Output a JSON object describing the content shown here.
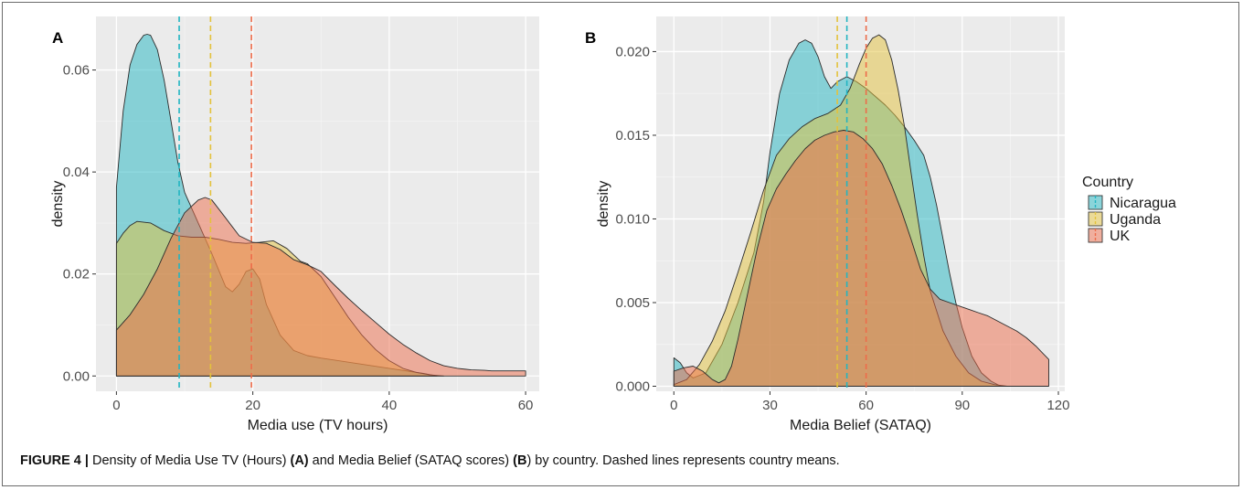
{
  "caption": {
    "label": "FIGURE 4 |",
    "t1": " Density of Media Use TV (Hours) ",
    "a": "(A)",
    "t2": " and Media Belief (SATAQ scores) ",
    "b": "(B",
    "t3": ") by country. Dashed lines represents country means."
  },
  "legend": {
    "title": "Country",
    "items": [
      {
        "name": "Nicaragua",
        "color": "#22b5c2"
      },
      {
        "name": "Uganda",
        "color": "#e3c23c"
      },
      {
        "name": "UK",
        "color": "#ee6c4a"
      }
    ]
  },
  "chart_data": [
    {
      "type": "area",
      "panel": "A",
      "xlabel": "Media use (TV hours)",
      "ylabel": "density",
      "xlim": [
        -3,
        62
      ],
      "ylim": [
        -0.003,
        0.0705
      ],
      "xticks": [
        0,
        20,
        40,
        60
      ],
      "yticks": [
        0.0,
        0.02,
        0.04,
        0.06
      ],
      "ytick_labels": [
        "0.00",
        "0.02",
        "0.04",
        "0.06"
      ],
      "grid": true,
      "series": [
        {
          "name": "Nicaragua",
          "color": "#22b5c2",
          "mean": 9.2,
          "x": [
            0,
            1,
            2,
            3,
            4,
            4.5,
            5,
            6,
            7,
            8,
            9,
            10,
            12,
            14,
            16,
            17,
            18,
            19,
            20,
            21,
            22,
            24,
            26,
            28,
            30,
            35,
            40,
            45,
            47
          ],
          "y": [
            0.037,
            0.052,
            0.061,
            0.065,
            0.0668,
            0.067,
            0.0668,
            0.064,
            0.058,
            0.05,
            0.042,
            0.036,
            0.03,
            0.024,
            0.0175,
            0.0165,
            0.018,
            0.0205,
            0.021,
            0.019,
            0.014,
            0.008,
            0.005,
            0.004,
            0.0035,
            0.0025,
            0.0015,
            0.0005,
            0
          ]
        },
        {
          "name": "Uganda",
          "color": "#e3c23c",
          "mean": 13.8,
          "x": [
            0,
            1,
            2,
            3,
            5,
            7,
            9,
            11,
            13,
            15,
            17,
            19,
            21,
            23,
            25,
            27,
            28,
            30,
            32,
            34,
            36,
            38,
            40,
            42,
            44,
            46,
            48
          ],
          "y": [
            0.026,
            0.028,
            0.0295,
            0.0303,
            0.03,
            0.0285,
            0.0275,
            0.0272,
            0.0272,
            0.0268,
            0.0262,
            0.026,
            0.0262,
            0.0265,
            0.025,
            0.0225,
            0.022,
            0.0195,
            0.0155,
            0.0115,
            0.008,
            0.0052,
            0.003,
            0.0015,
            0.0007,
            0.0002,
            0
          ]
        },
        {
          "name": "UK",
          "color": "#ee6c4a",
          "mean": 19.8,
          "x": [
            0,
            2,
            4,
            6,
            8,
            10,
            12,
            13,
            14,
            16,
            18,
            20,
            22,
            24,
            26,
            28,
            30,
            32,
            34,
            36,
            38,
            40,
            42,
            44,
            46,
            48,
            50,
            52,
            54,
            55,
            56,
            58,
            60
          ],
          "y": [
            0.009,
            0.012,
            0.016,
            0.021,
            0.027,
            0.032,
            0.0345,
            0.035,
            0.0345,
            0.031,
            0.0275,
            0.0262,
            0.026,
            0.0248,
            0.0228,
            0.0218,
            0.0205,
            0.0178,
            0.0152,
            0.0128,
            0.0105,
            0.0082,
            0.0062,
            0.0045,
            0.003,
            0.002,
            0.0015,
            0.0012,
            0.0011,
            0.001,
            0.001,
            0.001,
            0.001
          ]
        }
      ]
    },
    {
      "type": "area",
      "panel": "B",
      "xlabel": "Media Belief (SATAQ)",
      "ylabel": "density",
      "xlim": [
        -5.5,
        122
      ],
      "ylim": [
        -0.0003,
        0.0221
      ],
      "xticks": [
        0,
        30,
        60,
        90,
        120
      ],
      "yticks": [
        0.0,
        0.005,
        0.01,
        0.015,
        0.02
      ],
      "ytick_labels": [
        "0.000",
        "0.005",
        "0.010",
        "0.015",
        "0.020"
      ],
      "grid": true,
      "series": [
        {
          "name": "Nicaragua",
          "color": "#22b5c2",
          "mean": 54,
          "x": [
            0,
            2,
            4,
            6,
            10,
            15,
            20,
            25,
            28,
            30,
            33,
            36,
            39,
            41,
            43,
            45,
            47,
            49,
            51,
            54,
            57,
            60,
            63,
            66,
            69,
            72,
            75,
            78,
            80,
            82,
            84,
            86,
            88,
            90,
            93,
            96,
            99,
            102
          ],
          "y": [
            0.0017,
            0.0014,
            0.0008,
            0.0005,
            0.0008,
            0.0025,
            0.005,
            0.008,
            0.011,
            0.014,
            0.0175,
            0.0195,
            0.0205,
            0.0207,
            0.0205,
            0.0197,
            0.0185,
            0.0178,
            0.0182,
            0.0185,
            0.0182,
            0.0178,
            0.0173,
            0.0168,
            0.0162,
            0.0155,
            0.0147,
            0.0138,
            0.0125,
            0.0108,
            0.0088,
            0.0068,
            0.005,
            0.0035,
            0.0018,
            0.0008,
            0.0003,
            0
          ]
        },
        {
          "name": "Uganda",
          "color": "#e3c23c",
          "mean": 51,
          "x": [
            0,
            4,
            8,
            12,
            16,
            20,
            24,
            28,
            32,
            36,
            40,
            44,
            48,
            52,
            55,
            58,
            60,
            62,
            64,
            66,
            68,
            70,
            72,
            74,
            76,
            78,
            80,
            84,
            88,
            92,
            96,
            100,
            104
          ],
          "y": [
            0.0001,
            0.0004,
            0.0013,
            0.0027,
            0.0045,
            0.0068,
            0.0092,
            0.0117,
            0.0138,
            0.0148,
            0.0155,
            0.016,
            0.0163,
            0.0168,
            0.0178,
            0.0193,
            0.0202,
            0.0208,
            0.021,
            0.0207,
            0.0195,
            0.0177,
            0.0155,
            0.0128,
            0.0102,
            0.0078,
            0.0057,
            0.0033,
            0.0018,
            0.0008,
            0.0003,
            0.0001,
            0
          ]
        },
        {
          "name": "UK",
          "color": "#ee6c4a",
          "mean": 60,
          "x": [
            0,
            3,
            6,
            9,
            12,
            14,
            16,
            18,
            20,
            23,
            26,
            29,
            32,
            35,
            38,
            41,
            44,
            47,
            50,
            53,
            56,
            59,
            62,
            65,
            68,
            71,
            74,
            77,
            80,
            83,
            86,
            89,
            92,
            95,
            98,
            101,
            104,
            107,
            110,
            113,
            116,
            117
          ],
          "y": [
            0.0009,
            0.0011,
            0.0012,
            0.0009,
            0.0004,
            0.0002,
            0.0004,
            0.0012,
            0.0028,
            0.0055,
            0.0082,
            0.0105,
            0.0118,
            0.0127,
            0.0135,
            0.0142,
            0.0147,
            0.015,
            0.0152,
            0.0153,
            0.0152,
            0.0148,
            0.0142,
            0.0133,
            0.012,
            0.0105,
            0.0088,
            0.007,
            0.0058,
            0.0052,
            0.005,
            0.0048,
            0.0046,
            0.0044,
            0.0042,
            0.0039,
            0.0036,
            0.0033,
            0.0029,
            0.0024,
            0.0018,
            0.0016
          ]
        }
      ]
    }
  ]
}
